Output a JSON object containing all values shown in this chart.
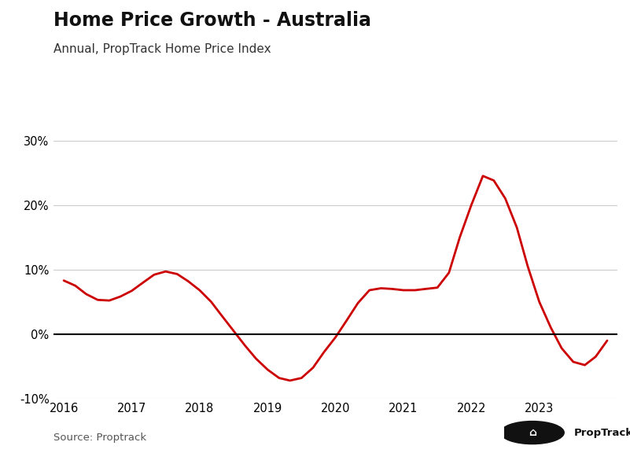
{
  "title": "Home Price Growth - Australia",
  "subtitle": "Annual, PropTrack Home Price Index",
  "source": "Source: Proptrack",
  "line_color": "#cc0000",
  "zero_line_color": "#000000",
  "grid_color": "#cccccc",
  "background_color": "#ffffff",
  "title_fontsize": 17,
  "subtitle_fontsize": 11,
  "ylim": [
    -0.1,
    0.3
  ],
  "yticks": [
    -0.1,
    0.0,
    0.1,
    0.2,
    0.3
  ],
  "x_data": [
    2016.0,
    2016.17,
    2016.33,
    2016.5,
    2016.67,
    2016.83,
    2017.0,
    2017.17,
    2017.33,
    2017.5,
    2017.67,
    2017.83,
    2018.0,
    2018.17,
    2018.33,
    2018.5,
    2018.67,
    2018.83,
    2019.0,
    2019.17,
    2019.33,
    2019.5,
    2019.67,
    2019.83,
    2020.0,
    2020.17,
    2020.33,
    2020.5,
    2020.67,
    2020.83,
    2021.0,
    2021.17,
    2021.33,
    2021.5,
    2021.67,
    2021.83,
    2022.0,
    2022.17,
    2022.33,
    2022.5,
    2022.67,
    2022.83,
    2023.0,
    2023.17,
    2023.33,
    2023.5,
    2023.67,
    2023.83,
    2024.0
  ],
  "y_data": [
    0.083,
    0.075,
    0.062,
    0.053,
    0.052,
    0.058,
    0.067,
    0.08,
    0.092,
    0.097,
    0.093,
    0.082,
    0.068,
    0.05,
    0.028,
    0.005,
    -0.018,
    -0.038,
    -0.055,
    -0.068,
    -0.072,
    -0.068,
    -0.052,
    -0.028,
    -0.005,
    0.022,
    0.048,
    0.068,
    0.071,
    0.07,
    0.068,
    0.068,
    0.07,
    0.072,
    0.095,
    0.15,
    0.2,
    0.245,
    0.238,
    0.21,
    0.165,
    0.105,
    0.05,
    0.01,
    -0.022,
    -0.043,
    -0.048,
    -0.035,
    -0.01
  ],
  "xticks": [
    2016,
    2017,
    2018,
    2019,
    2020,
    2021,
    2022,
    2023
  ],
  "xlim": [
    2015.85,
    2024.15
  ]
}
